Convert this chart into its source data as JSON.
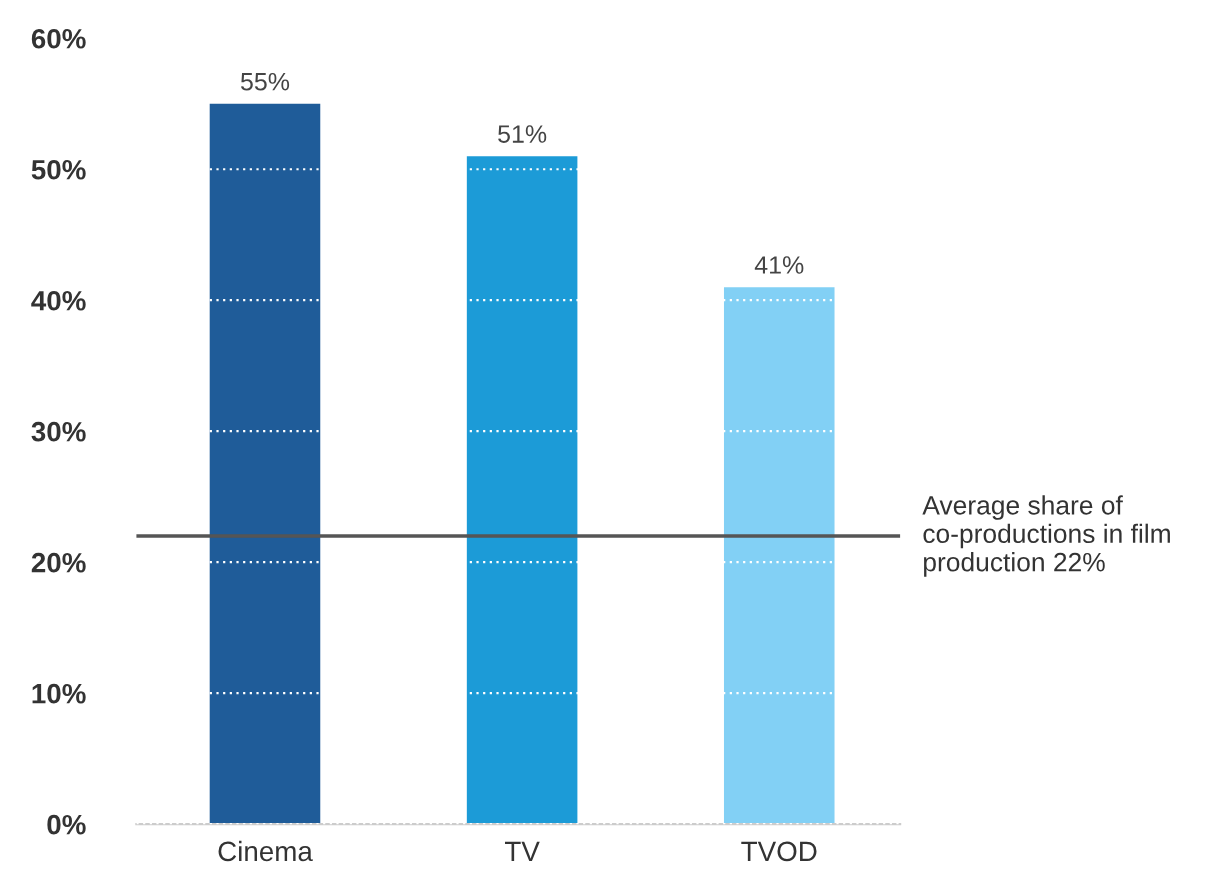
{
  "chart_data": {
    "type": "bar",
    "categories": [
      "Cinema",
      "TV",
      "TVOD"
    ],
    "values": [
      55,
      51,
      41
    ],
    "colors": [
      "#1f5c99",
      "#1c9bd7",
      "#82d0f5"
    ],
    "value_labels": [
      "55%",
      "51%",
      "41%"
    ],
    "ylim": [
      0,
      60
    ],
    "yticks": [
      {
        "value": 0,
        "label": "0%"
      },
      {
        "value": 10,
        "label": "10%"
      },
      {
        "value": 20,
        "label": "20%"
      },
      {
        "value": 30,
        "label": "30%"
      },
      {
        "value": 40,
        "label": "40%"
      },
      {
        "value": 50,
        "label": "50%"
      },
      {
        "value": 60,
        "label": "60%"
      }
    ],
    "grid": "y",
    "ref_lines": [
      {
        "axis": "y",
        "value": 22,
        "label": "Average share of\nco-productions in film\nproduction 22%",
        "color": "#555555"
      }
    ]
  }
}
